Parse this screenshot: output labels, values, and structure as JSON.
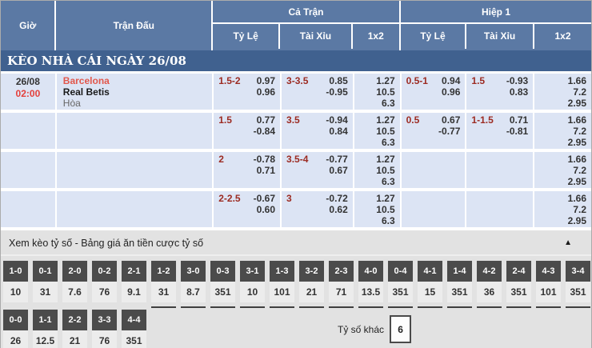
{
  "header": {
    "col_time": "Giờ",
    "col_match": "Trận Đấu",
    "group_full": "Cả Trận",
    "group_half": "Hiệp 1",
    "sub_odds": "Tỷ Lệ",
    "sub_ou": "Tài Xỉu",
    "sub_1x2": "1x2"
  },
  "section_title": "KÈO NHÀ CÁI NGÀY 26/08",
  "rows": [
    {
      "date": "26/08",
      "time": "02:00",
      "home": "Barcelona",
      "away": "Real Betis",
      "draw": "Hòa",
      "ft": {
        "hdp": {
          "line": "1.5-2",
          "odds": [
            "0.97",
            "0.96"
          ]
        },
        "ou": {
          "line": "3-3.5",
          "odds": [
            "0.85",
            "-0.95"
          ]
        },
        "x12": [
          "1.27",
          "10.5",
          "6.3"
        ]
      },
      "h1": {
        "hdp": {
          "line": "0.5-1",
          "odds": [
            "0.94",
            "0.96"
          ]
        },
        "ou": {
          "line": "1.5",
          "odds": [
            "-0.93",
            "0.83"
          ]
        },
        "x12": [
          "1.66",
          "7.2",
          "2.95"
        ]
      }
    },
    {
      "date": "",
      "time": "",
      "home": "",
      "away": "",
      "draw": "",
      "ft": {
        "hdp": {
          "line": "1.5",
          "odds": [
            "0.77",
            "-0.84"
          ]
        },
        "ou": {
          "line": "3.5",
          "odds": [
            "-0.94",
            "0.84"
          ]
        },
        "x12": [
          "1.27",
          "10.5",
          "6.3"
        ]
      },
      "h1": {
        "hdp": {
          "line": "0.5",
          "odds": [
            "0.67",
            "-0.77"
          ]
        },
        "ou": {
          "line": "1-1.5",
          "odds": [
            "0.71",
            "-0.81"
          ]
        },
        "x12": [
          "1.66",
          "7.2",
          "2.95"
        ]
      }
    },
    {
      "date": "",
      "time": "",
      "home": "",
      "away": "",
      "draw": "",
      "ft": {
        "hdp": {
          "line": "2",
          "odds": [
            "-0.78",
            "0.71"
          ]
        },
        "ou": {
          "line": "3.5-4",
          "odds": [
            "-0.77",
            "0.67"
          ]
        },
        "x12": [
          "1.27",
          "10.5",
          "6.3"
        ]
      },
      "h1": {
        "hdp": {
          "line": "",
          "odds": [
            "",
            ""
          ]
        },
        "ou": {
          "line": "",
          "odds": [
            "",
            ""
          ]
        },
        "x12": [
          "1.66",
          "7.2",
          "2.95"
        ]
      }
    },
    {
      "date": "",
      "time": "",
      "home": "",
      "away": "",
      "draw": "",
      "ft": {
        "hdp": {
          "line": "2-2.5",
          "odds": [
            "-0.67",
            "0.60"
          ]
        },
        "ou": {
          "line": "3",
          "odds": [
            "-0.72",
            "0.62"
          ]
        },
        "x12": [
          "1.27",
          "10.5",
          "6.3"
        ]
      },
      "h1": {
        "hdp": {
          "line": "",
          "odds": [
            "",
            ""
          ]
        },
        "ou": {
          "line": "",
          "odds": [
            "",
            ""
          ]
        },
        "x12": [
          "1.66",
          "7.2",
          "2.95"
        ]
      }
    }
  ],
  "score_section": {
    "title": "Xem kèo tỷ số - Bảng giá ăn tiền cược tỷ số",
    "collapse_icon": "▲",
    "row1": [
      {
        "score": "1-0",
        "odds": "10"
      },
      {
        "score": "0-1",
        "odds": "31"
      },
      {
        "score": "2-0",
        "odds": "7.6"
      },
      {
        "score": "0-2",
        "odds": "76"
      },
      {
        "score": "2-1",
        "odds": "9.1"
      },
      {
        "score": "1-2",
        "odds": "31"
      },
      {
        "score": "3-0",
        "odds": "8.7"
      },
      {
        "score": "0-3",
        "odds": "351"
      },
      {
        "score": "3-1",
        "odds": "10"
      },
      {
        "score": "1-3",
        "odds": "101"
      },
      {
        "score": "3-2",
        "odds": "21"
      },
      {
        "score": "2-3",
        "odds": "71"
      },
      {
        "score": "4-0",
        "odds": "13.5"
      },
      {
        "score": "0-4",
        "odds": "351"
      },
      {
        "score": "4-1",
        "odds": "15"
      },
      {
        "score": "1-4",
        "odds": "351"
      },
      {
        "score": "4-2",
        "odds": "36"
      },
      {
        "score": "2-4",
        "odds": "351"
      },
      {
        "score": "4-3",
        "odds": "101"
      },
      {
        "score": "3-4",
        "odds": "351"
      }
    ],
    "row2": [
      {
        "score": "0-0",
        "odds": "26"
      },
      {
        "score": "1-1",
        "odds": "12.5"
      },
      {
        "score": "2-2",
        "odds": "21"
      },
      {
        "score": "3-3",
        "odds": "76"
      },
      {
        "score": "4-4",
        "odds": "351"
      }
    ],
    "other_label": "Tỷ số khác",
    "other_value": "6"
  },
  "colors": {
    "header_blue": "#5b79a4",
    "title_blue": "#40618f",
    "row_bg": "#dce4f4",
    "handicap_maroon": "#9c2b22",
    "team_red": "#e2574b",
    "time_red": "#e4403c",
    "score_header_gray": "#4b4b4b",
    "section_bg": "#e2e2e2"
  }
}
